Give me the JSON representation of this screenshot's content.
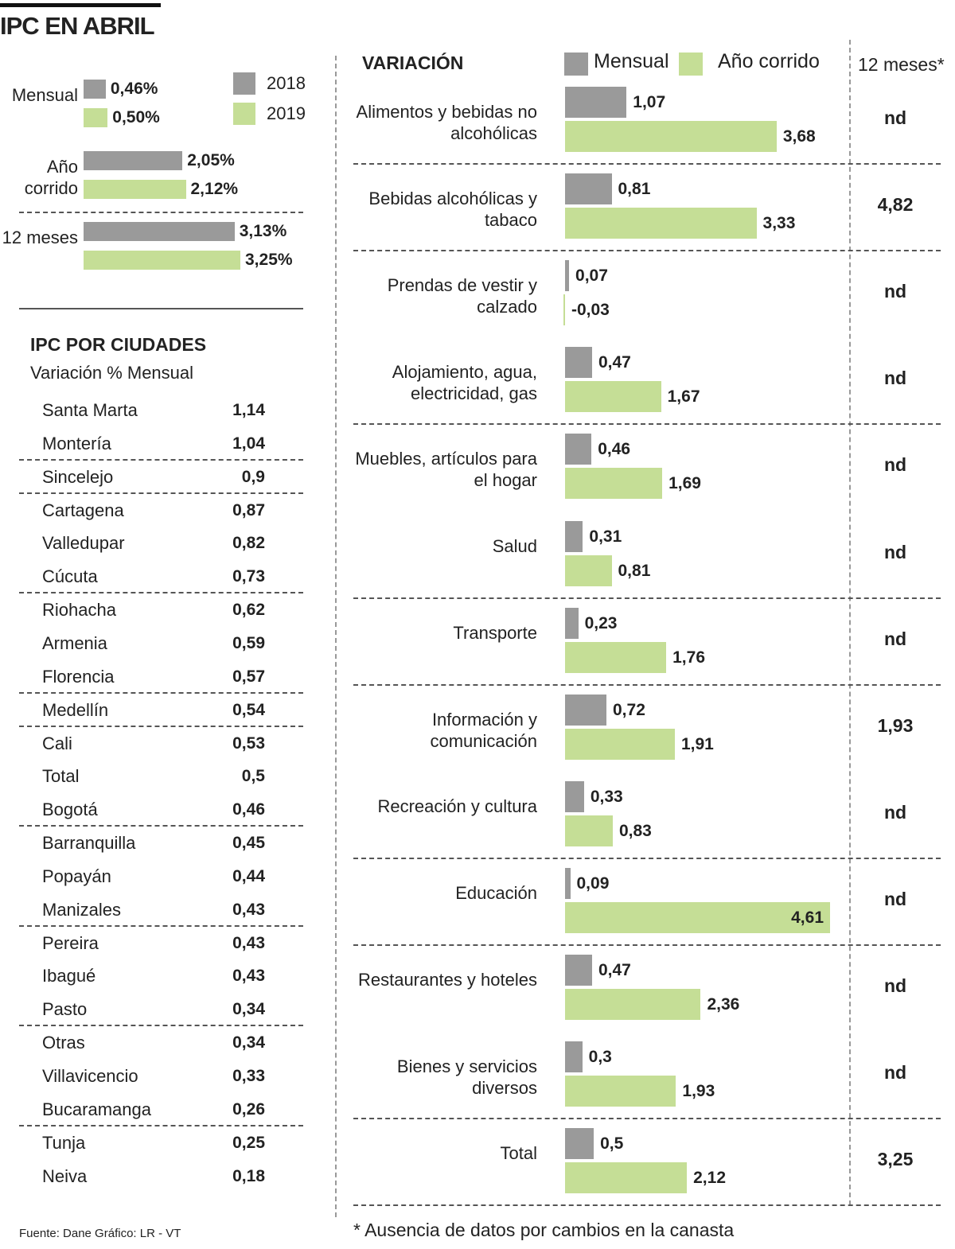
{
  "title": "IPC EN ABRIL",
  "chart_data": [
    {
      "type": "bar",
      "orientation": "horizontal",
      "categories": [
        "Mensual",
        "Año corrido",
        "12 meses"
      ],
      "series": [
        {
          "name": "2018",
          "color": "#9a9a9a",
          "values": [
            0.46,
            2.05,
            3.13
          ],
          "value_labels": [
            "0,46%",
            "2,05%",
            "3,13%"
          ]
        },
        {
          "name": "2019",
          "color": "#c5de96",
          "values": [
            0.5,
            2.12,
            3.25
          ],
          "value_labels": [
            "0,50%",
            "2,12%",
            "3,25%"
          ]
        }
      ]
    },
    {
      "type": "bar",
      "orientation": "horizontal",
      "title": "VARIACIÓN",
      "categories": [
        "Alimentos y bebidas no alcohólicas",
        "Bebidas alcohólicas y tabaco",
        "Prendas de vestir y calzado",
        "Alojamiento, agua, electricidad, gas",
        "Muebles, artículos para el hogar",
        "Salud",
        "Transporte",
        "Información y comunicación",
        "Recreación y cultura",
        "Educación",
        "Restaurantes y hoteles",
        "Bienes y servicios diversos",
        "Total"
      ],
      "series": [
        {
          "name": "Mensual",
          "color": "#9a9a9a",
          "values": [
            1.07,
            0.81,
            0.07,
            0.47,
            0.46,
            0.31,
            0.23,
            0.72,
            0.33,
            0.09,
            0.47,
            0.3,
            0.5
          ],
          "value_labels": [
            "1,07",
            "0,81",
            "0,07",
            "0,47",
            "0,46",
            "0,31",
            "0,23",
            "0,72",
            "0,33",
            "0,09",
            "0,47",
            "0,3",
            "0,5"
          ]
        },
        {
          "name": "Año corrido",
          "color": "#c5de96",
          "values": [
            3.68,
            3.33,
            -0.03,
            1.67,
            1.69,
            0.81,
            1.76,
            1.91,
            0.83,
            4.61,
            2.36,
            1.93,
            2.12
          ],
          "value_labels": [
            "3,68",
            "3,33",
            "-0,03",
            "1,67",
            "1,69",
            "0,81",
            "1,76",
            "1,91",
            "0,83",
            "4,61",
            "2,36",
            "1,93",
            "2,12"
          ]
        }
      ]
    }
  ],
  "twelve_months": {
    "header": "12 meses*",
    "cells": [
      "nd",
      "4,82",
      "nd",
      "nd",
      "nd",
      "nd",
      "nd",
      "1,93",
      "nd",
      "nd",
      "nd",
      "nd",
      "3,25"
    ]
  },
  "cities": {
    "title": "IPC POR CIUDADES",
    "subtitle": "Variación % Mensual",
    "rows": [
      [
        "Santa Marta",
        "1,14"
      ],
      [
        "Montería",
        "1,04"
      ],
      [
        "Sincelejo",
        "0,9"
      ],
      [
        "Cartagena",
        "0,87"
      ],
      [
        "Valledupar",
        "0,82"
      ],
      [
        "Cúcuta",
        "0,73"
      ],
      [
        "Riohacha",
        "0,62"
      ],
      [
        "Armenia",
        "0,59"
      ],
      [
        "Florencia",
        "0,57"
      ],
      [
        "Medellín",
        "0,54"
      ],
      [
        "Cali",
        "0,53"
      ],
      [
        "Total",
        "0,5"
      ],
      [
        "Bogotá",
        "0,46"
      ],
      [
        "Barranquilla",
        "0,45"
      ],
      [
        "Popayán",
        "0,44"
      ],
      [
        "Manizales",
        "0,43"
      ],
      [
        "Pereira",
        "0,43"
      ],
      [
        "Ibagué",
        "0,43"
      ],
      [
        "Pasto",
        "0,34"
      ],
      [
        "Otras",
        "0,34"
      ],
      [
        "Villavicencio",
        "0,33"
      ],
      [
        "Bucaramanga",
        "0,26"
      ],
      [
        "Tunja",
        "0,25"
      ],
      [
        "Neiva",
        "0,18"
      ]
    ]
  },
  "source": "Fuente: Dane   Gráfico: LR - VT",
  "footnote": "* Ausencia de datos por cambios en la canasta"
}
